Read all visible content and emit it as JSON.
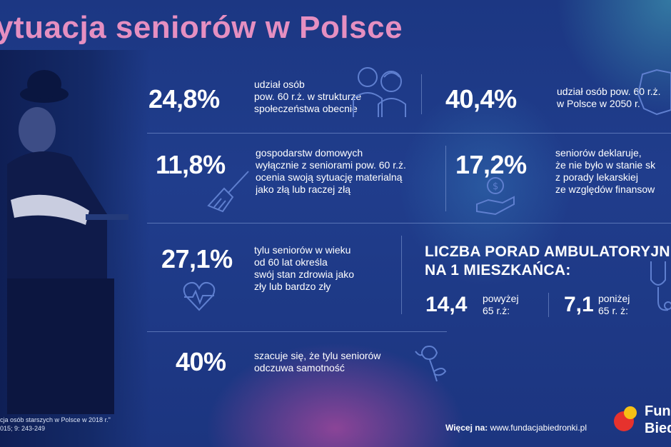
{
  "title": "ytuacja seniorów w Polsce",
  "stats": [
    {
      "value": "24,8%",
      "text": "udział osób\npow. 60 r.ż. w strukturze\nspołeczeństwa obecnie"
    },
    {
      "value": "40,4%",
      "text": "udział osób pow. 60 r.ż.\nw Polsce w 2050 r."
    },
    {
      "value": "11,8%",
      "text": "gospodarstw domowych\nwyłącznie z seniorami pow. 60 r.ż.\nocenia swoją sytuację materialną\njako złą lub raczej złą"
    },
    {
      "value": "17,2%",
      "text": "seniorów deklaruje,\nże nie było w stanie sk\nz porady lekarskiej\nze względów finansow"
    },
    {
      "value": "27,1%",
      "text": "tylu seniorów w wieku\nod 60 lat określa\nswój stan zdrowia jako\nzły lub bardzo zły"
    },
    {
      "value": "40%",
      "text": "szacuje się, że tylu seniorów\nodczuwa samotność"
    }
  ],
  "ambulatory": {
    "heading": "LICZBA PORAD AMBULATORYJN\nNA 1 MIESZKAŃCA:",
    "above_value": "14,4",
    "above_label": "powyżej\n65 r.ż:",
    "below_value": "7,1",
    "below_label": "poniżej\n65 r. ż:"
  },
  "footer": {
    "source": "cja osób starszych w Polsce w 2018 r.\"\n015; 9: 243-249",
    "more_label": "Więcej na:",
    "more_url": "www.fundacjabiedronki.pl",
    "logo": "Fun\nBied"
  },
  "colors": {
    "background": "#1f3a86",
    "title": "#e58fc1",
    "icon_stroke": "#5f7fcf",
    "logo_red": "#e6322d",
    "logo_yellow": "#f6c015"
  },
  "icons": [
    "seniors-couple-icon",
    "poland-map-icon",
    "broom-icon",
    "coin-hand-icon",
    "heart-pulse-icon",
    "stethoscope-icon",
    "flower-icon",
    "fundacja-logo-icon"
  ]
}
